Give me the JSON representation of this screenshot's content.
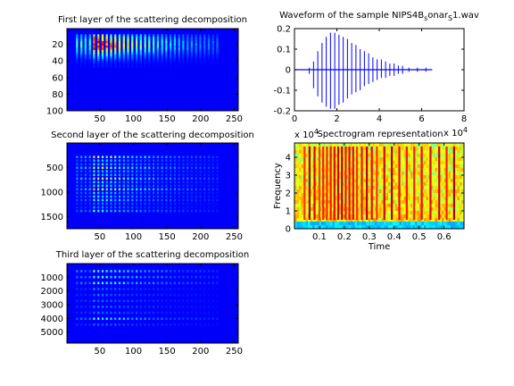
{
  "figure": {
    "background": "#ffffff",
    "axis_color": "#000000",
    "colormap": "jet"
  },
  "chart_data": [
    {
      "type": "heatmap",
      "title": "First layer of the scattering decomposition",
      "xlim": [
        1,
        256
      ],
      "ylim": [
        1,
        100
      ],
      "xticks": [
        50,
        100,
        150,
        200,
        250
      ],
      "yticks": [
        20,
        40,
        60,
        80,
        100
      ],
      "y_reversed": true,
      "stripe_count": 34,
      "active_rows": [
        10,
        45
      ],
      "decay_from_x": 40,
      "peak_value": 1.0
    },
    {
      "type": "heatmap",
      "title": "Second layer of the scattering decomposition",
      "xlim": [
        1,
        256
      ],
      "ylim": [
        1,
        1750
      ],
      "xticks": [
        50,
        100,
        150,
        200,
        250
      ],
      "yticks": [
        500,
        1000,
        1500
      ],
      "y_reversed": true,
      "stripe_count": 34,
      "active_rows": [
        300,
        1400
      ],
      "decay_from_x": 40,
      "peak_value": 0.6
    },
    {
      "type": "heatmap",
      "title": "Third layer of the scattering decomposition",
      "xlim": [
        1,
        256
      ],
      "ylim": [
        1,
        5800
      ],
      "xticks": [
        50,
        100,
        150,
        200,
        250
      ],
      "yticks": [
        1000,
        2000,
        3000,
        4000,
        5000
      ],
      "y_reversed": true,
      "stripe_count": 34,
      "active_rows": [
        600,
        4500
      ],
      "decay_from_x": 40,
      "peak_value": 0.45
    },
    {
      "type": "line",
      "title_main": "Waveform of the sample NIPS4B",
      "title_sub": "s",
      "title_mid": "onar",
      "title_sub2": "S",
      "title_end": "1.wav",
      "series_color": "#0000ff",
      "xlim": [
        0,
        8
      ],
      "ylim": [
        -0.2,
        0.2
      ],
      "xticks": [
        0,
        2,
        4,
        6,
        8
      ],
      "yticks": [
        -0.2,
        -0.1,
        0,
        0.1,
        0.2
      ],
      "signal_span": [
        0.0,
        6.5
      ],
      "spikes": [
        {
          "x": 0.7,
          "up": 0.01,
          "down": -0.02
        },
        {
          "x": 0.9,
          "up": 0.04,
          "down": -0.09
        },
        {
          "x": 1.1,
          "up": 0.09,
          "down": -0.13
        },
        {
          "x": 1.3,
          "up": 0.13,
          "down": -0.16
        },
        {
          "x": 1.5,
          "up": 0.16,
          "down": -0.18
        },
        {
          "x": 1.7,
          "up": 0.18,
          "down": -0.19
        },
        {
          "x": 1.9,
          "up": 0.18,
          "down": -0.19
        },
        {
          "x": 2.1,
          "up": 0.17,
          "down": -0.17
        },
        {
          "x": 2.3,
          "up": 0.16,
          "down": -0.16
        },
        {
          "x": 2.5,
          "up": 0.15,
          "down": -0.14
        },
        {
          "x": 2.7,
          "up": 0.13,
          "down": -0.12
        },
        {
          "x": 2.9,
          "up": 0.12,
          "down": -0.11
        },
        {
          "x": 3.1,
          "up": 0.1,
          "down": -0.1
        },
        {
          "x": 3.3,
          "up": 0.09,
          "down": -0.08
        },
        {
          "x": 3.5,
          "up": 0.08,
          "down": -0.07
        },
        {
          "x": 3.7,
          "up": 0.06,
          "down": -0.06
        },
        {
          "x": 3.9,
          "up": 0.05,
          "down": -0.05
        },
        {
          "x": 4.1,
          "up": 0.05,
          "down": -0.04
        },
        {
          "x": 4.3,
          "up": 0.04,
          "down": -0.04
        },
        {
          "x": 4.5,
          "up": 0.03,
          "down": -0.03
        },
        {
          "x": 4.7,
          "up": 0.03,
          "down": -0.03
        },
        {
          "x": 4.9,
          "up": 0.02,
          "down": -0.02
        },
        {
          "x": 5.1,
          "up": 0.02,
          "down": -0.02
        },
        {
          "x": 5.4,
          "up": 0.01,
          "down": -0.01
        },
        {
          "x": 5.8,
          "up": 0.01,
          "down": -0.01
        },
        {
          "x": 6.2,
          "up": 0.01,
          "down": -0.01
        }
      ]
    },
    {
      "type": "heatmap",
      "title": "Spectrogram representation",
      "xlabel": "Time",
      "ylabel": "Frequency",
      "xlim": [
        0,
        0.68
      ],
      "ylim": [
        0,
        48000
      ],
      "xticks": [
        0.1,
        0.2,
        0.3,
        0.4,
        0.5,
        0.6
      ],
      "xtick_labels": [
        "0.1",
        "0.2",
        "0.3",
        "0.4",
        "0.5",
        "0.6"
      ],
      "yticks": [
        0,
        10000,
        20000,
        30000,
        40000
      ],
      "ytick_labels": [
        "0",
        "1",
        "2",
        "3",
        "4"
      ],
      "y_multiplier": "x 10",
      "y_multiplier_exp": "4",
      "x_multiplier": "x 10",
      "x_multiplier_exp": "4",
      "click_times": [
        0.04,
        0.06,
        0.08,
        0.1,
        0.115,
        0.13,
        0.145,
        0.16,
        0.175,
        0.19,
        0.205,
        0.22,
        0.235,
        0.25,
        0.27,
        0.29,
        0.31,
        0.33,
        0.36,
        0.39,
        0.42,
        0.45,
        0.48,
        0.51,
        0.545,
        0.58,
        0.61,
        0.64
      ]
    }
  ]
}
